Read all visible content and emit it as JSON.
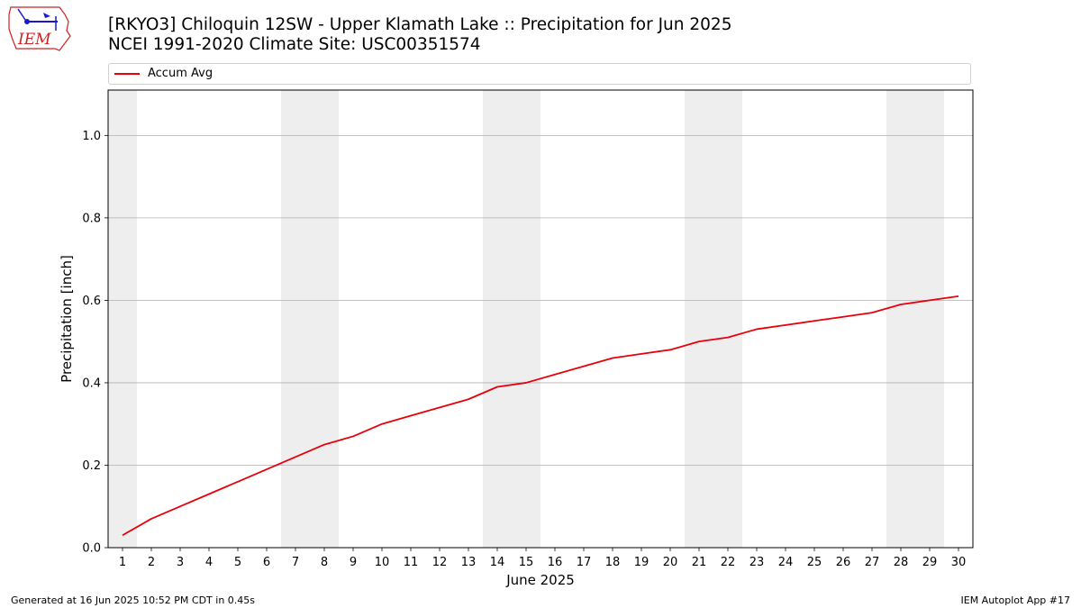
{
  "header": {
    "title_line1": "[RKYO3] Chiloquin 12SW - Upper Klamath Lake :: Precipitation for Jun 2025",
    "title_line2": "NCEI 1991-2020 Climate Site: USC00351574",
    "logo_text": "IEM"
  },
  "footer": {
    "left": "Generated at 16 Jun 2025 10:52 PM CDT in 0.45s",
    "right": "IEM Autoplot App #17"
  },
  "colors": {
    "series": "#e8000b",
    "weekend_band": "#eeeeee",
    "grid": "#b0b0b0",
    "logo_outline": "#cc2222",
    "logo_blue": "#1a1acc"
  },
  "chart_data": {
    "type": "line",
    "xlabel": "June 2025",
    "ylabel": "Precipitation [inch]",
    "xlim": [
      0.5,
      30.5
    ],
    "ylim": [
      0.0,
      1.11
    ],
    "yticks": [
      0.0,
      0.2,
      0.4,
      0.6,
      0.8,
      1.0
    ],
    "ytick_labels": [
      "0.0",
      "0.2",
      "0.4",
      "0.6",
      "0.8",
      "1.0"
    ],
    "xticks": [
      1,
      2,
      3,
      4,
      5,
      6,
      7,
      8,
      9,
      10,
      11,
      12,
      13,
      14,
      15,
      16,
      17,
      18,
      19,
      20,
      21,
      22,
      23,
      24,
      25,
      26,
      27,
      28,
      29,
      30
    ],
    "xtick_labels": [
      "1",
      "2",
      "3",
      "4",
      "5",
      "6",
      "7",
      "8",
      "9",
      "10",
      "11",
      "12",
      "13",
      "14",
      "15",
      "16",
      "17",
      "18",
      "19",
      "20",
      "21",
      "22",
      "23",
      "24",
      "25",
      "26",
      "27",
      "28",
      "29",
      "30"
    ],
    "grid": "horizontal",
    "legend_position": "top",
    "weekend_bands": [
      [
        0.5,
        1.5
      ],
      [
        6.5,
        8.5
      ],
      [
        13.5,
        15.5
      ],
      [
        20.5,
        22.5
      ],
      [
        27.5,
        29.5
      ]
    ],
    "series": [
      {
        "name": "Accum Avg",
        "x": [
          1,
          2,
          3,
          4,
          5,
          6,
          7,
          8,
          9,
          10,
          11,
          12,
          13,
          14,
          15,
          16,
          17,
          18,
          19,
          20,
          21,
          22,
          23,
          24,
          25,
          26,
          27,
          28,
          29,
          30
        ],
        "values": [
          0.03,
          0.07,
          0.1,
          0.13,
          0.16,
          0.19,
          0.22,
          0.25,
          0.27,
          0.3,
          0.32,
          0.34,
          0.36,
          0.39,
          0.4,
          0.42,
          0.44,
          0.46,
          0.47,
          0.48,
          0.5,
          0.51,
          0.53,
          0.54,
          0.55,
          0.56,
          0.57,
          0.59,
          0.6,
          0.61
        ]
      }
    ]
  }
}
